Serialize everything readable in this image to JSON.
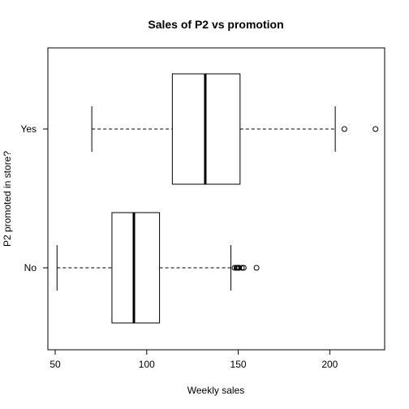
{
  "chart_data": {
    "type": "boxplot",
    "orientation": "horizontal",
    "title": "Sales of P2 vs promotion",
    "xlabel": "Weekly sales",
    "ylabel": "P2 promoted in store?",
    "xlim": [
      46,
      230
    ],
    "xticks": [
      50,
      100,
      150,
      200
    ],
    "categories": [
      "No",
      "Yes"
    ],
    "boxes": [
      {
        "category": "No",
        "whisker_low": 51,
        "q1": 81,
        "median": 93,
        "q3": 107,
        "whisker_high": 146,
        "outliers": [
          148,
          149,
          149.5,
          150,
          150.5,
          152,
          153,
          160
        ]
      },
      {
        "category": "Yes",
        "whisker_low": 70,
        "q1": 114,
        "median": 132,
        "q3": 151,
        "whisker_high": 203,
        "outliers": [
          208,
          225
        ]
      }
    ],
    "grid": false,
    "legend": "none"
  }
}
